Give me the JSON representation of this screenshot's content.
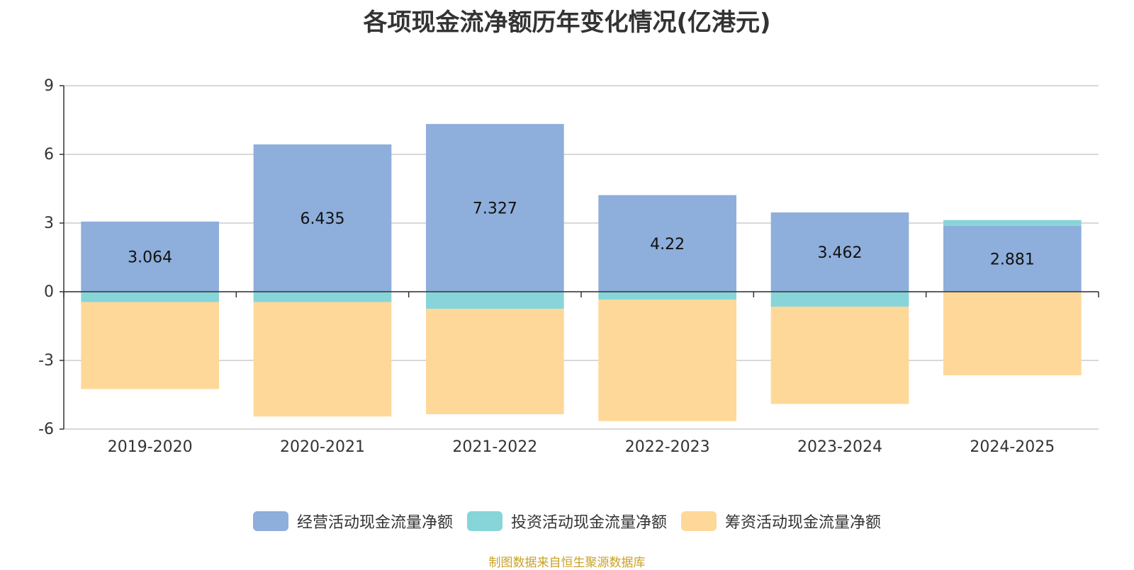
{
  "chart_data": {
    "type": "bar",
    "stacked": true,
    "title": "各项现金流净额历年变化情况(亿港元)",
    "categories": [
      "2019-2020",
      "2020-2021",
      "2021-2022",
      "2022-2023",
      "2023-2024",
      "2024-2025"
    ],
    "ylim": [
      -6,
      9
    ],
    "yticks": [
      9,
      6,
      3,
      0,
      -3,
      -6
    ],
    "grid": true,
    "legend_position": "bottom",
    "series": [
      {
        "name": "经营活动现金流量净额",
        "color": "#8eaedb",
        "values": [
          3.064,
          6.435,
          7.327,
          4.22,
          3.462,
          2.881
        ],
        "labels": [
          "3.064",
          "6.435",
          "7.327",
          "4.22",
          "3.462",
          "2.881"
        ]
      },
      {
        "name": "投资活动现金流量净额",
        "color": "#87d5d8",
        "values": [
          -0.45,
          -0.45,
          -0.75,
          -0.35,
          -0.65,
          0.25
        ]
      },
      {
        "name": "筹资活动现金流量净额",
        "color": "#fed899",
        "values": [
          -3.8,
          -5.0,
          -4.6,
          -5.3,
          -4.25,
          -3.65
        ]
      }
    ]
  },
  "footer": {
    "source": "制图数据来自恒生聚源数据库"
  }
}
